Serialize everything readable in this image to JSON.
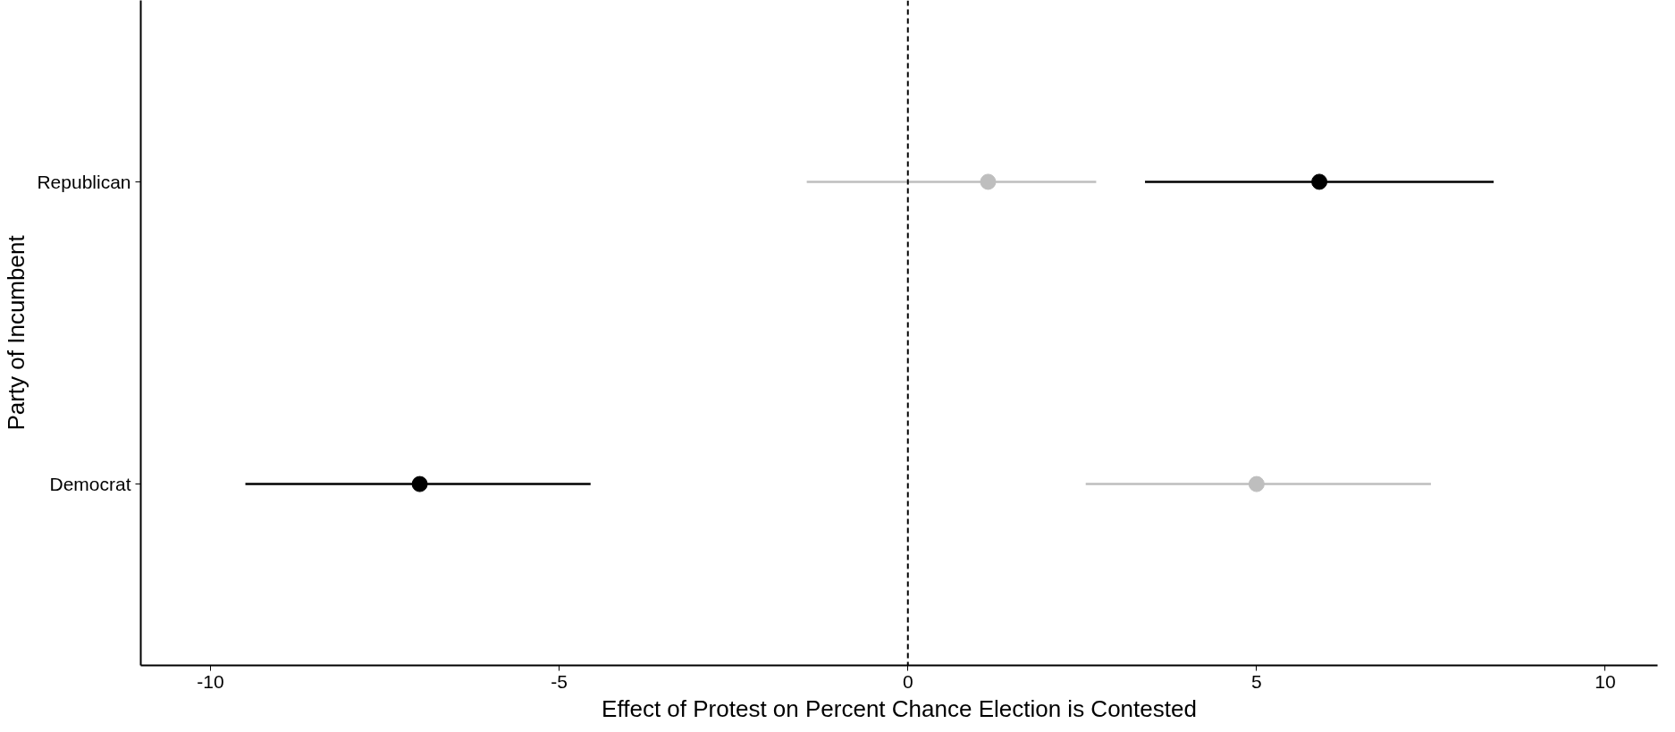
{
  "chart_data": {
    "type": "scatter",
    "orientation": "horizontal",
    "xlabel": "Effect of Protest on Percent Chance Election is Contested",
    "ylabel": "Party of Incumbent",
    "categories": [
      "Republican",
      "Democrat"
    ],
    "series": [
      {
        "color": "#000000",
        "values": [
          5.9,
          -7.0
        ],
        "errors": [
          [
            3.4,
            8.4
          ],
          [
            -9.5,
            -4.55
          ]
        ]
      },
      {
        "color": "#bebebe",
        "values": [
          1.15,
          5.0
        ],
        "errors": [
          [
            -1.45,
            2.7
          ],
          [
            2.55,
            7.5
          ]
        ]
      }
    ],
    "xlim": [
      -11,
      10.75
    ],
    "xticks": [
      -10,
      -5,
      0,
      5,
      10
    ],
    "ref_lines": [
      {
        "axis": "x",
        "value": 0,
        "color": "#000000",
        "line_style": "dashed"
      }
    ],
    "grid": false,
    "marker": "circle"
  }
}
